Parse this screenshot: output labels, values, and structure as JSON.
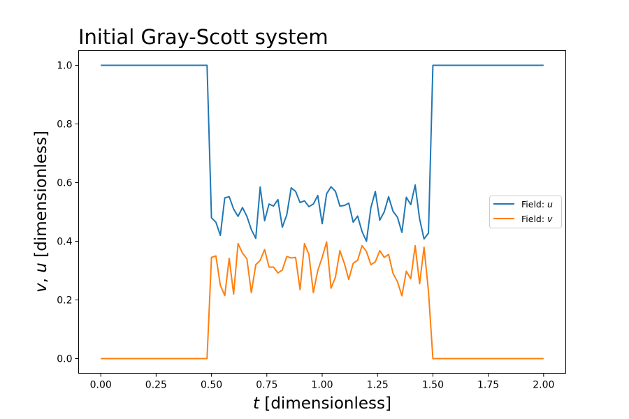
{
  "chart_data": {
    "type": "line",
    "title": "Initial Gray-Scott system",
    "xlabel": {
      "var": "t",
      "unit": " [dimensionless]"
    },
    "ylabel": {
      "var1": "v",
      "sep": ", ",
      "var2": "u",
      "unit": " [dimensionless]"
    },
    "xlim": [
      -0.1,
      2.1
    ],
    "ylim": [
      -0.05,
      1.05
    ],
    "xticks": [
      0.0,
      0.25,
      0.5,
      0.75,
      1.0,
      1.25,
      1.5,
      1.75,
      2.0
    ],
    "xtick_labels": [
      "0.00",
      "0.25",
      "0.50",
      "0.75",
      "1.00",
      "1.25",
      "1.50",
      "1.75",
      "2.00"
    ],
    "yticks": [
      0.0,
      0.2,
      0.4,
      0.6,
      0.8,
      1.0
    ],
    "ytick_labels": [
      "0.0",
      "0.2",
      "0.4",
      "0.6",
      "0.8",
      "1.0"
    ],
    "grid": false,
    "legend_position": "center-right",
    "series": [
      {
        "prefix": "Field: ",
        "var": "u",
        "color": "#1f77b4",
        "x": [
          0.0,
          0.48,
          0.5,
          0.52,
          0.54,
          0.56,
          0.58,
          0.6,
          0.62,
          0.64,
          0.66,
          0.68,
          0.7,
          0.72,
          0.74,
          0.76,
          0.78,
          0.8,
          0.82,
          0.84,
          0.86,
          0.88,
          0.9,
          0.92,
          0.94,
          0.96,
          0.98,
          1.0,
          1.02,
          1.04,
          1.06,
          1.08,
          1.1,
          1.12,
          1.14,
          1.16,
          1.18,
          1.2,
          1.22,
          1.24,
          1.26,
          1.28,
          1.3,
          1.32,
          1.34,
          1.36,
          1.38,
          1.4,
          1.42,
          1.44,
          1.46,
          1.48,
          1.5,
          1.52,
          2.0
        ],
        "y": [
          1.0,
          1.0,
          0.48,
          0.465,
          0.42,
          0.548,
          0.552,
          0.51,
          0.485,
          0.515,
          0.485,
          0.44,
          0.41,
          0.585,
          0.47,
          0.527,
          0.52,
          0.542,
          0.448,
          0.49,
          0.582,
          0.57,
          0.532,
          0.538,
          0.518,
          0.527,
          0.556,
          0.46,
          0.562,
          0.586,
          0.57,
          0.52,
          0.522,
          0.53,
          0.465,
          0.486,
          0.433,
          0.4,
          0.515,
          0.57,
          0.472,
          0.5,
          0.552,
          0.502,
          0.482,
          0.43,
          0.55,
          0.525,
          0.592,
          0.476,
          0.408,
          0.428,
          1.0,
          1.0,
          1.0
        ]
      },
      {
        "prefix": "Field: ",
        "var": "v",
        "color": "#ff7f0e",
        "x": [
          0.0,
          0.48,
          0.5,
          0.52,
          0.54,
          0.56,
          0.58,
          0.6,
          0.62,
          0.64,
          0.66,
          0.68,
          0.7,
          0.72,
          0.74,
          0.76,
          0.78,
          0.8,
          0.82,
          0.84,
          0.86,
          0.88,
          0.9,
          0.92,
          0.94,
          0.96,
          0.98,
          1.0,
          1.02,
          1.04,
          1.06,
          1.08,
          1.1,
          1.12,
          1.14,
          1.16,
          1.18,
          1.2,
          1.22,
          1.24,
          1.26,
          1.28,
          1.3,
          1.32,
          1.34,
          1.36,
          1.38,
          1.4,
          1.42,
          1.44,
          1.46,
          1.48,
          1.5,
          1.52,
          2.0
        ],
        "y": [
          0.0,
          0.0,
          0.345,
          0.35,
          0.25,
          0.215,
          0.342,
          0.22,
          0.392,
          0.36,
          0.34,
          0.225,
          0.32,
          0.335,
          0.372,
          0.312,
          0.312,
          0.292,
          0.302,
          0.348,
          0.343,
          0.345,
          0.235,
          0.392,
          0.355,
          0.225,
          0.3,
          0.345,
          0.398,
          0.24,
          0.278,
          0.368,
          0.325,
          0.27,
          0.325,
          0.335,
          0.385,
          0.365,
          0.32,
          0.33,
          0.368,
          0.345,
          0.355,
          0.29,
          0.262,
          0.214,
          0.298,
          0.272,
          0.385,
          0.255,
          0.38,
          0.23,
          0.0,
          0.0,
          0.0
        ]
      }
    ]
  }
}
